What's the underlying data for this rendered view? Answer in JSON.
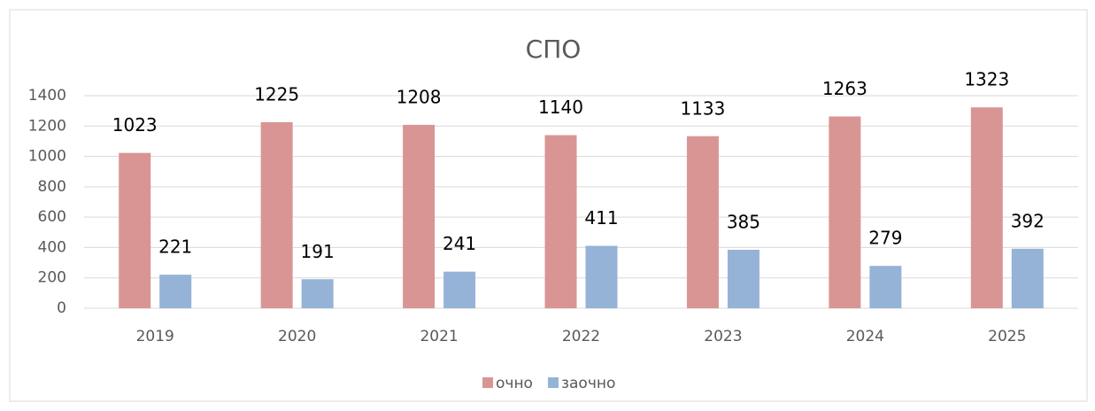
{
  "chart_data": {
    "type": "bar",
    "title": "СПО",
    "categories": [
      "2019",
      "2020",
      "2021",
      "2022",
      "2023",
      "2024",
      "2025"
    ],
    "series": [
      {
        "name": "очно",
        "color": "#d99594",
        "values": [
          1023,
          1225,
          1208,
          1140,
          1133,
          1263,
          1323
        ]
      },
      {
        "name": "заочно",
        "color": "#95b3d7",
        "values": [
          221,
          191,
          241,
          411,
          385,
          279,
          392
        ]
      }
    ],
    "ylim": [
      0,
      1400
    ],
    "yticks": [
      0,
      200,
      400,
      600,
      800,
      1000,
      1200,
      1400
    ],
    "grid": true,
    "legend": "bottom"
  }
}
